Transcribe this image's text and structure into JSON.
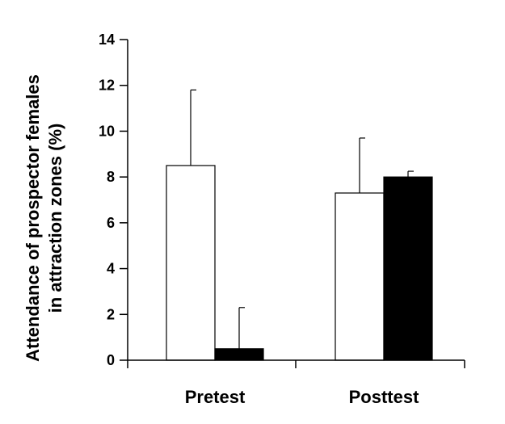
{
  "chart_data": {
    "type": "bar",
    "title": "",
    "xlabel": "",
    "ylabel_lines": [
      "Attendance of prospector females",
      "in attraction zones (%)"
    ],
    "categories": [
      "Pretest",
      "Posttest"
    ],
    "ylim": [
      0,
      14
    ],
    "yticks": [
      0,
      2,
      4,
      6,
      8,
      10,
      12,
      14
    ],
    "grid": false,
    "legend": "none",
    "series": [
      {
        "fill": "#ffffff",
        "values": [
          8.5,
          7.3
        ],
        "error_upper": [
          11.8,
          9.7
        ]
      },
      {
        "fill": "#000000",
        "values": [
          0.5,
          8.0
        ],
        "error_upper": [
          2.3,
          8.25
        ]
      }
    ]
  }
}
